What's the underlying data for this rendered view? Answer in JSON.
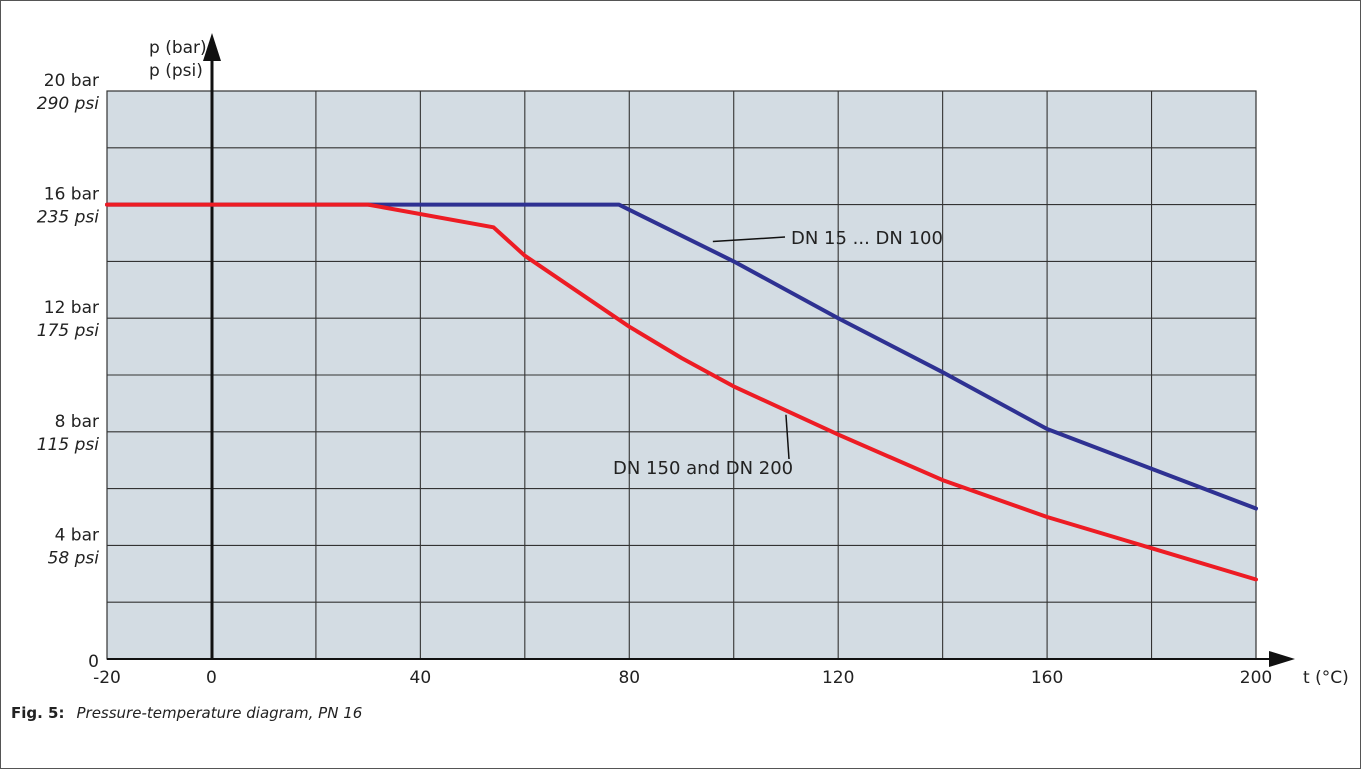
{
  "chart_data": {
    "type": "line",
    "title": "",
    "xlabel": "t (°C)",
    "ylabel_bar": "p (bar)",
    "ylabel_psi": "p (psi)",
    "xlim": [
      -20,
      200
    ],
    "ylim": [
      0,
      20
    ],
    "x_ticks": [
      {
        "value": -20,
        "label": "-20"
      },
      {
        "value": 0,
        "label": "0"
      },
      {
        "value": 40,
        "label": "40"
      },
      {
        "value": 80,
        "label": "80"
      },
      {
        "value": 120,
        "label": "120"
      },
      {
        "value": 160,
        "label": "160"
      },
      {
        "value": 200,
        "label": "200"
      }
    ],
    "y_ticks": [
      {
        "value": 0,
        "bar": "0",
        "psi": ""
      },
      {
        "value": 4,
        "bar": "4 bar",
        "psi": "58 psi"
      },
      {
        "value": 8,
        "bar": "8 bar",
        "psi": "115 psi"
      },
      {
        "value": 12,
        "bar": "12 bar",
        "psi": "175 psi"
      },
      {
        "value": 16,
        "bar": "16 bar",
        "psi": "235 psi"
      },
      {
        "value": 20,
        "bar": "20 bar",
        "psi": "290 psi"
      }
    ],
    "grid": true,
    "grid_x_step": 20,
    "grid_y_step": 2,
    "plot_background": "#d3dce3",
    "series": [
      {
        "name": "DN 15 ... DN 100",
        "color": "#2e3192",
        "points": [
          [
            -20,
            16
          ],
          [
            78,
            16
          ],
          [
            100,
            14
          ],
          [
            120,
            12
          ],
          [
            140,
            10.1
          ],
          [
            160,
            8.1
          ],
          [
            180,
            6.7
          ],
          [
            200,
            5.3
          ]
        ]
      },
      {
        "name": "DN 150 and DN 200",
        "color": "#ed1c24",
        "points": [
          [
            -20,
            16
          ],
          [
            30,
            16
          ],
          [
            54,
            15.2
          ],
          [
            60,
            14.2
          ],
          [
            80,
            11.7
          ],
          [
            90,
            10.6
          ],
          [
            100,
            9.6
          ],
          [
            120,
            7.9
          ],
          [
            140,
            6.3
          ],
          [
            160,
            5.0
          ],
          [
            180,
            3.9
          ],
          [
            200,
            2.8
          ]
        ]
      }
    ],
    "annotations": [
      {
        "text": "DN 15 ... DN 100",
        "series": 0,
        "at": [
          96,
          14.7
        ]
      },
      {
        "text": "DN 150 and DN 200",
        "series": 1,
        "at": [
          110,
          8.6
        ]
      }
    ]
  },
  "caption": {
    "label": "Fig. 5:",
    "text": "Pressure-temperature diagram, PN 16"
  }
}
